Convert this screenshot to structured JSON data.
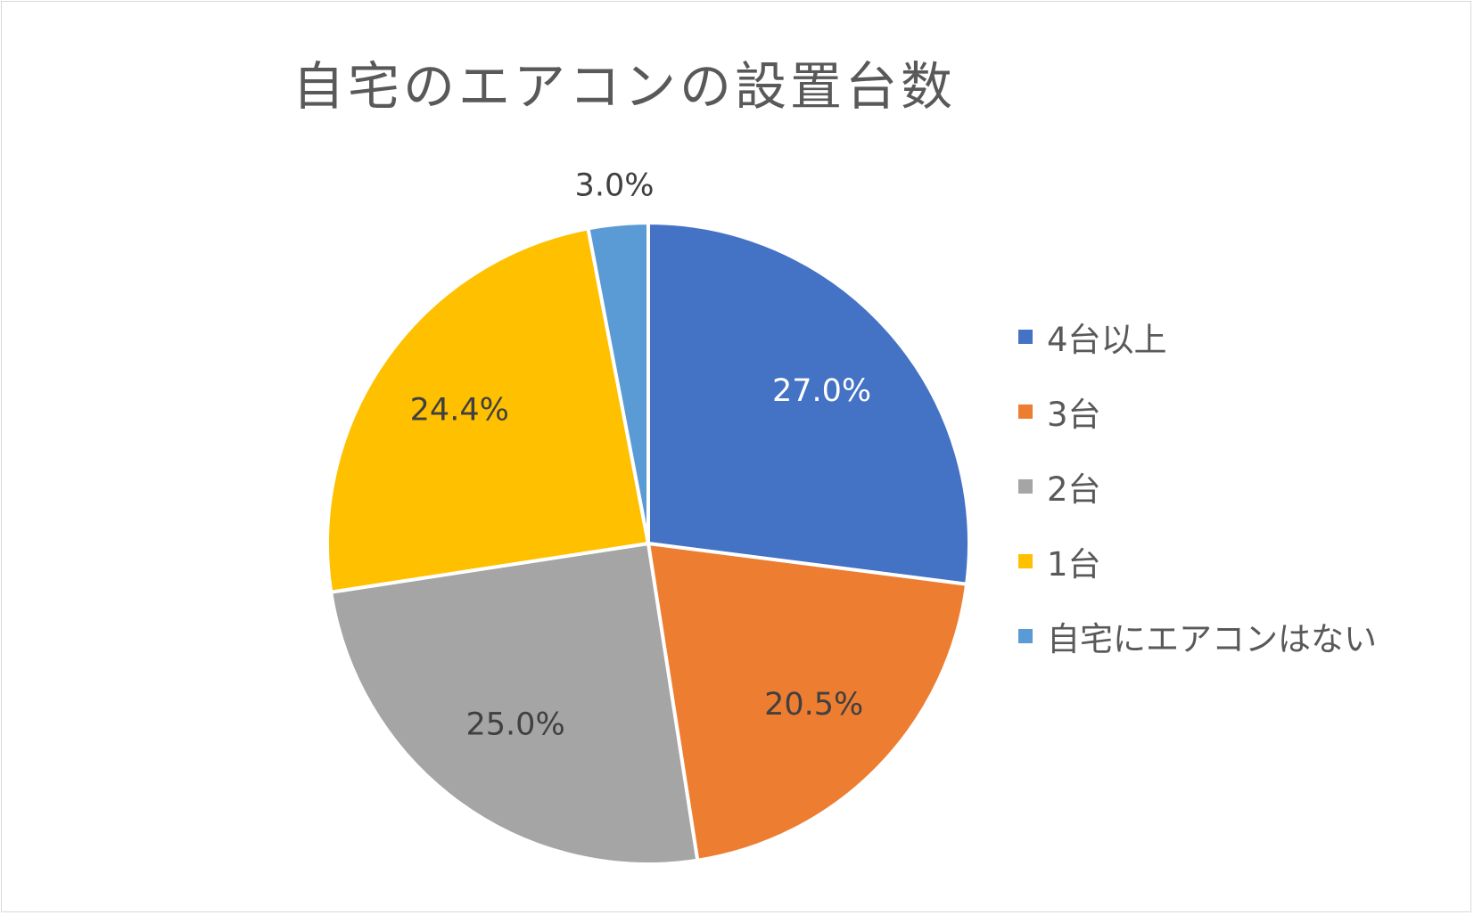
{
  "chart_data": {
    "type": "pie",
    "title": "自宅のエアコンの設置台数",
    "categories": [
      "4台以上",
      "3台",
      "2台",
      "1台",
      "自宅にエアコンはない"
    ],
    "values": [
      27.0,
      20.5,
      25.0,
      24.4,
      3.0
    ],
    "data_labels": [
      "27.0%",
      "20.5%",
      "25.0%",
      "24.4%",
      "3.0%"
    ],
    "colors": [
      "#4472c4",
      "#ed7d31",
      "#a5a5a5",
      "#ffc000",
      "#5b9bd5"
    ],
    "label_colors": [
      "#ffffff",
      "#404040",
      "#404040",
      "#404040",
      "#404040"
    ],
    "start_angle_deg": 0,
    "direction": "clockwise",
    "legend_position": "right",
    "unit": "%"
  }
}
